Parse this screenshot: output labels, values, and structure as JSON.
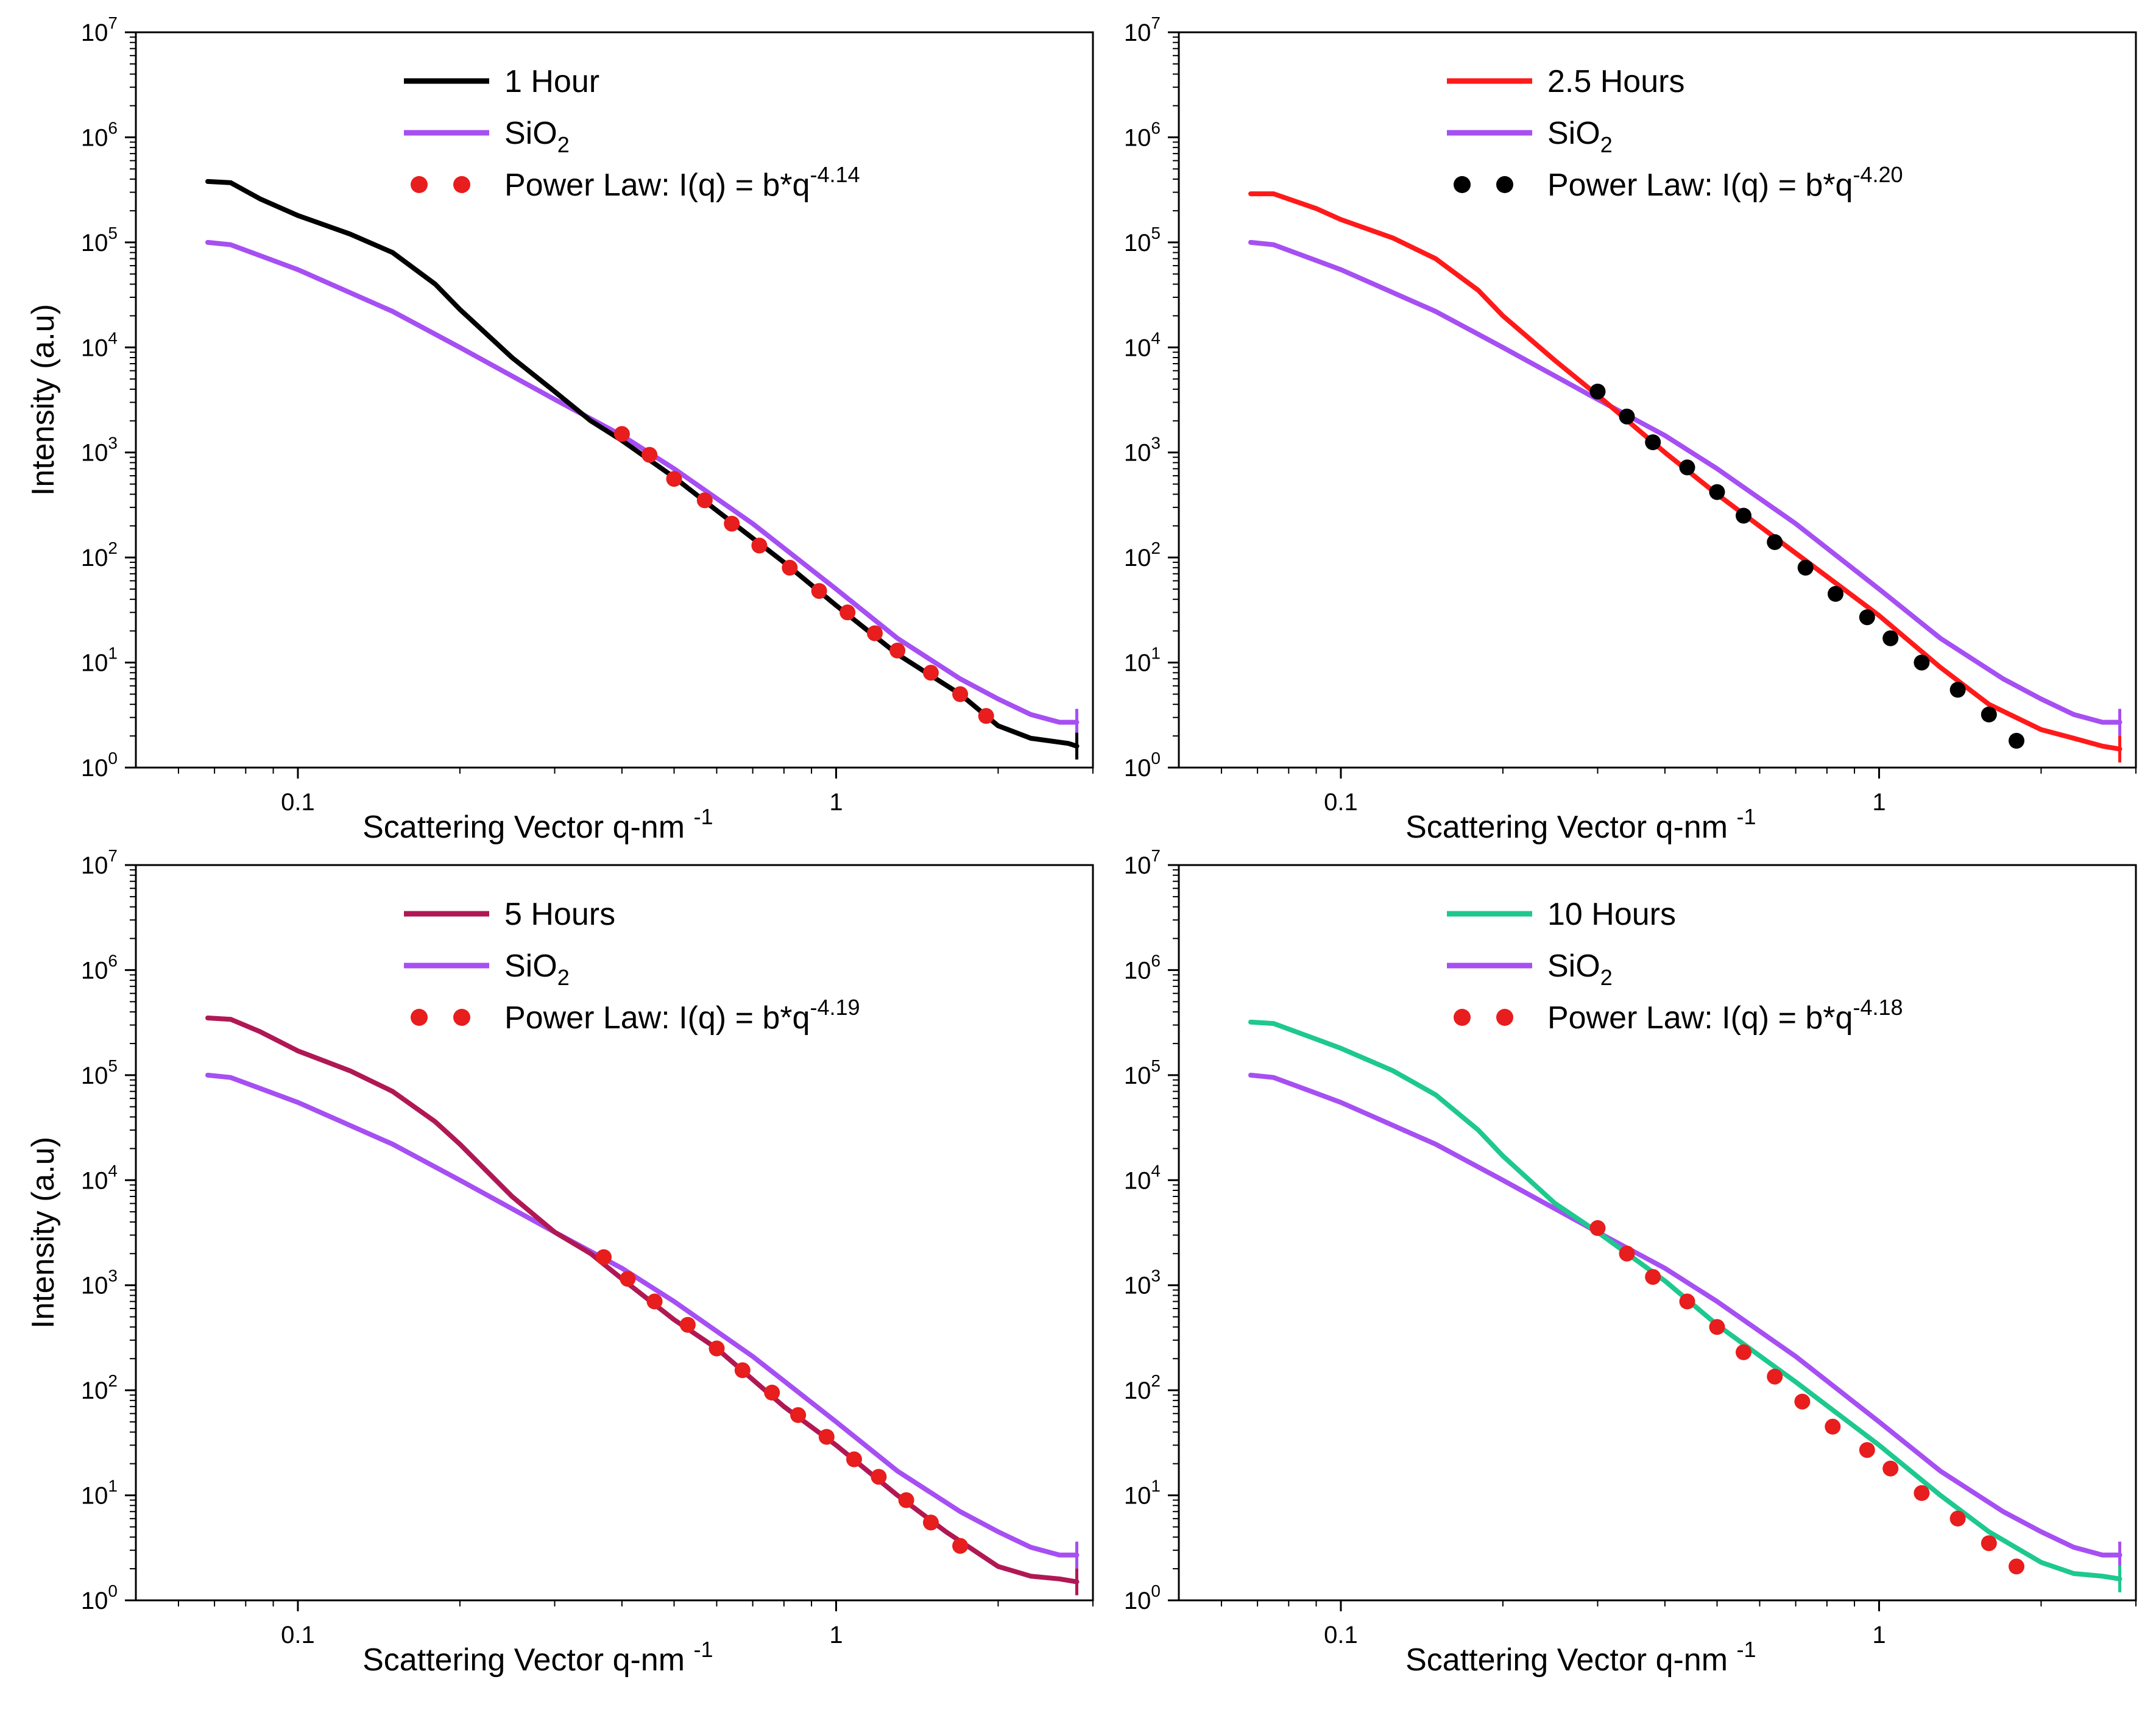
{
  "figure": {
    "ylabel": "Intensity (a.u)",
    "xlabel_main": "Scattering Vector q-nm",
    "xlabel_exp": "-1",
    "y_tick_labels": [
      "10",
      "10",
      "10",
      "10",
      "10",
      "10",
      "10",
      "10"
    ],
    "y_tick_exponents": [
      "0",
      "1",
      "2",
      "3",
      "4",
      "5",
      "6",
      "7"
    ],
    "x_tick_labels": [
      "0.1",
      "1"
    ]
  },
  "chart_data": [
    {
      "type": "line",
      "title": "",
      "xscale": "log",
      "yscale": "log",
      "xlim": [
        0.05,
        3.0
      ],
      "ylim": [
        1,
        10000000
      ],
      "legend_position": "top-right",
      "series": [
        {
          "name": "1 Hour",
          "style": "line",
          "color": "#000000",
          "points": [
            [
              0.068,
              380000
            ],
            [
              0.075,
              370000
            ],
            [
              0.085,
              260000
            ],
            [
              0.1,
              180000
            ],
            [
              0.125,
              120000
            ],
            [
              0.15,
              80000
            ],
            [
              0.18,
              40000
            ],
            [
              0.2,
              23000
            ],
            [
              0.25,
              8000
            ],
            [
              0.3,
              3800
            ],
            [
              0.35,
              2000
            ],
            [
              0.4,
              1300
            ],
            [
              0.5,
              580
            ],
            [
              0.6,
              280
            ],
            [
              0.8,
              90
            ],
            [
              1.0,
              35
            ],
            [
              1.3,
              12
            ],
            [
              1.7,
              5
            ],
            [
              2.0,
              2.5
            ],
            [
              2.3,
              1.9
            ],
            [
              2.7,
              1.7
            ],
            [
              2.8,
              1.6
            ]
          ]
        },
        {
          "name": "SiO2",
          "legend_base": "SiO",
          "legend_sub": "2",
          "style": "line",
          "color": "#a64ff2",
          "points": [
            [
              0.068,
              100000
            ],
            [
              0.075,
              95000
            ],
            [
              0.1,
              55000
            ],
            [
              0.15,
              22000
            ],
            [
              0.2,
              10000
            ],
            [
              0.3,
              3200
            ],
            [
              0.4,
              1450
            ],
            [
              0.5,
              700
            ],
            [
              0.7,
              210
            ],
            [
              1.0,
              50
            ],
            [
              1.3,
              17
            ],
            [
              1.7,
              7
            ],
            [
              2.0,
              4.5
            ],
            [
              2.3,
              3.2
            ],
            [
              2.6,
              2.7
            ],
            [
              2.8,
              2.7
            ]
          ]
        },
        {
          "name": "Power Law: I(q) = b*q",
          "legend_exp": "-4.14",
          "style": "dots",
          "color": "#e81d1d",
          "points": [
            [
              0.4,
              1500
            ],
            [
              0.45,
              950
            ],
            [
              0.5,
              560
            ],
            [
              0.57,
              350
            ],
            [
              0.64,
              210
            ],
            [
              0.72,
              130
            ],
            [
              0.82,
              80
            ],
            [
              0.93,
              48
            ],
            [
              1.05,
              30
            ],
            [
              1.18,
              19
            ],
            [
              1.3,
              13
            ],
            [
              1.5,
              8
            ],
            [
              1.7,
              5
            ],
            [
              1.9,
              3.1
            ]
          ]
        }
      ]
    },
    {
      "type": "line",
      "title": "",
      "xscale": "log",
      "yscale": "log",
      "xlim": [
        0.05,
        3.0
      ],
      "ylim": [
        1,
        10000000
      ],
      "legend_position": "top-right",
      "series": [
        {
          "name": "2.5 Hours",
          "style": "line",
          "color": "#ff1a1a",
          "points": [
            [
              0.068,
              290000
            ],
            [
              0.075,
              290000
            ],
            [
              0.09,
              210000
            ],
            [
              0.1,
              165000
            ],
            [
              0.125,
              110000
            ],
            [
              0.15,
              70000
            ],
            [
              0.18,
              35000
            ],
            [
              0.2,
              20000
            ],
            [
              0.25,
              7500
            ],
            [
              0.3,
              3500
            ],
            [
              0.4,
              1000
            ],
            [
              0.5,
              400
            ],
            [
              0.7,
              110
            ],
            [
              1.0,
              28
            ],
            [
              1.3,
              9
            ],
            [
              1.6,
              4
            ],
            [
              2.0,
              2.3
            ],
            [
              2.3,
              1.9
            ],
            [
              2.6,
              1.6
            ],
            [
              2.8,
              1.5
            ]
          ]
        },
        {
          "name": "SiO2",
          "legend_base": "SiO",
          "legend_sub": "2",
          "style": "line",
          "color": "#a64ff2",
          "points": [
            [
              0.068,
              100000
            ],
            [
              0.075,
              95000
            ],
            [
              0.1,
              55000
            ],
            [
              0.15,
              22000
            ],
            [
              0.2,
              10000
            ],
            [
              0.3,
              3200
            ],
            [
              0.4,
              1450
            ],
            [
              0.5,
              700
            ],
            [
              0.7,
              210
            ],
            [
              1.0,
              50
            ],
            [
              1.3,
              17
            ],
            [
              1.7,
              7
            ],
            [
              2.0,
              4.5
            ],
            [
              2.3,
              3.2
            ],
            [
              2.6,
              2.7
            ],
            [
              2.8,
              2.7
            ]
          ]
        },
        {
          "name": "Power Law: I(q) = b*q",
          "legend_exp": "-4.20",
          "style": "dots",
          "color": "#000000",
          "points": [
            [
              0.3,
              3800
            ],
            [
              0.34,
              2200
            ],
            [
              0.38,
              1250
            ],
            [
              0.44,
              720
            ],
            [
              0.5,
              420
            ],
            [
              0.56,
              250
            ],
            [
              0.64,
              140
            ],
            [
              0.73,
              80
            ],
            [
              0.83,
              45
            ],
            [
              0.95,
              27
            ],
            [
              1.05,
              17
            ],
            [
              1.2,
              10
            ],
            [
              1.4,
              5.5
            ],
            [
              1.6,
              3.2
            ],
            [
              1.8,
              1.8
            ]
          ]
        }
      ]
    },
    {
      "type": "line",
      "title": "",
      "xscale": "log",
      "yscale": "log",
      "xlim": [
        0.05,
        3.0
      ],
      "ylim": [
        1,
        10000000
      ],
      "legend_position": "top-right",
      "series": [
        {
          "name": "5 Hours",
          "style": "line",
          "color": "#b01854",
          "points": [
            [
              0.068,
              350000
            ],
            [
              0.075,
              340000
            ],
            [
              0.085,
              260000
            ],
            [
              0.1,
              170000
            ],
            [
              0.125,
              110000
            ],
            [
              0.15,
              70000
            ],
            [
              0.18,
              36000
            ],
            [
              0.2,
              22000
            ],
            [
              0.25,
              7000
            ],
            [
              0.3,
              3200
            ],
            [
              0.35,
              2000
            ],
            [
              0.4,
              1150
            ],
            [
              0.5,
              470
            ],
            [
              0.6,
              250
            ],
            [
              0.8,
              70
            ],
            [
              1.0,
              30
            ],
            [
              1.3,
              10
            ],
            [
              1.6,
              4.5
            ],
            [
              2.0,
              2.1
            ],
            [
              2.3,
              1.7
            ],
            [
              2.6,
              1.6
            ],
            [
              2.8,
              1.5
            ]
          ]
        },
        {
          "name": "SiO2",
          "legend_base": "SiO",
          "legend_sub": "2",
          "style": "line",
          "color": "#a64ff2",
          "points": [
            [
              0.068,
              100000
            ],
            [
              0.075,
              95000
            ],
            [
              0.1,
              55000
            ],
            [
              0.15,
              22000
            ],
            [
              0.2,
              10000
            ],
            [
              0.3,
              3200
            ],
            [
              0.4,
              1450
            ],
            [
              0.5,
              700
            ],
            [
              0.7,
              210
            ],
            [
              1.0,
              50
            ],
            [
              1.3,
              17
            ],
            [
              1.7,
              7
            ],
            [
              2.0,
              4.5
            ],
            [
              2.3,
              3.2
            ],
            [
              2.6,
              2.7
            ],
            [
              2.8,
              2.7
            ]
          ]
        },
        {
          "name": "Power Law: I(q) = b*q",
          "legend_exp": "-4.19",
          "style": "dots",
          "color": "#e81d1d",
          "points": [
            [
              0.37,
              1850
            ],
            [
              0.41,
              1150
            ],
            [
              0.46,
              700
            ],
            [
              0.53,
              420
            ],
            [
              0.6,
              250
            ],
            [
              0.67,
              155
            ],
            [
              0.76,
              95
            ],
            [
              0.85,
              58
            ],
            [
              0.96,
              36
            ],
            [
              1.08,
              22
            ],
            [
              1.2,
              15
            ],
            [
              1.35,
              9
            ],
            [
              1.5,
              5.5
            ],
            [
              1.7,
              3.3
            ]
          ]
        }
      ]
    },
    {
      "type": "line",
      "title": "",
      "xscale": "log",
      "yscale": "log",
      "xlim": [
        0.05,
        3.0
      ],
      "ylim": [
        1,
        10000000
      ],
      "legend_position": "top-right",
      "series": [
        {
          "name": "10 Hours",
          "style": "line",
          "color": "#1ec88f",
          "points": [
            [
              0.068,
              320000
            ],
            [
              0.075,
              310000
            ],
            [
              0.09,
              220000
            ],
            [
              0.1,
              180000
            ],
            [
              0.125,
              110000
            ],
            [
              0.15,
              65000
            ],
            [
              0.18,
              30000
            ],
            [
              0.2,
              17000
            ],
            [
              0.25,
              6000
            ],
            [
              0.3,
              3200
            ],
            [
              0.4,
              1100
            ],
            [
              0.5,
              420
            ],
            [
              0.7,
              120
            ],
            [
              1.0,
              30
            ],
            [
              1.3,
              10
            ],
            [
              1.6,
              4.5
            ],
            [
              2.0,
              2.3
            ],
            [
              2.3,
              1.8
            ],
            [
              2.6,
              1.7
            ],
            [
              2.8,
              1.6
            ]
          ]
        },
        {
          "name": "SiO2",
          "legend_base": "SiO",
          "legend_sub": "2",
          "style": "line",
          "color": "#a64ff2",
          "points": [
            [
              0.068,
              100000
            ],
            [
              0.075,
              95000
            ],
            [
              0.1,
              55000
            ],
            [
              0.15,
              22000
            ],
            [
              0.2,
              10000
            ],
            [
              0.3,
              3200
            ],
            [
              0.4,
              1450
            ],
            [
              0.5,
              700
            ],
            [
              0.7,
              210
            ],
            [
              1.0,
              50
            ],
            [
              1.3,
              17
            ],
            [
              1.7,
              7
            ],
            [
              2.0,
              4.5
            ],
            [
              2.3,
              3.2
            ],
            [
              2.6,
              2.7
            ],
            [
              2.8,
              2.7
            ]
          ]
        },
        {
          "name": "Power Law: I(q) = b*q",
          "legend_exp": "-4.18",
          "style": "dots",
          "color": "#e81d1d",
          "points": [
            [
              0.3,
              3500
            ],
            [
              0.34,
              2000
            ],
            [
              0.38,
              1200
            ],
            [
              0.44,
              700
            ],
            [
              0.5,
              400
            ],
            [
              0.56,
              230
            ],
            [
              0.64,
              135
            ],
            [
              0.72,
              78
            ],
            [
              0.82,
              45
            ],
            [
              0.95,
              27
            ],
            [
              1.05,
              18
            ],
            [
              1.2,
              10.5
            ],
            [
              1.4,
              6
            ],
            [
              1.6,
              3.5
            ],
            [
              1.8,
              2.1
            ]
          ]
        }
      ]
    }
  ]
}
